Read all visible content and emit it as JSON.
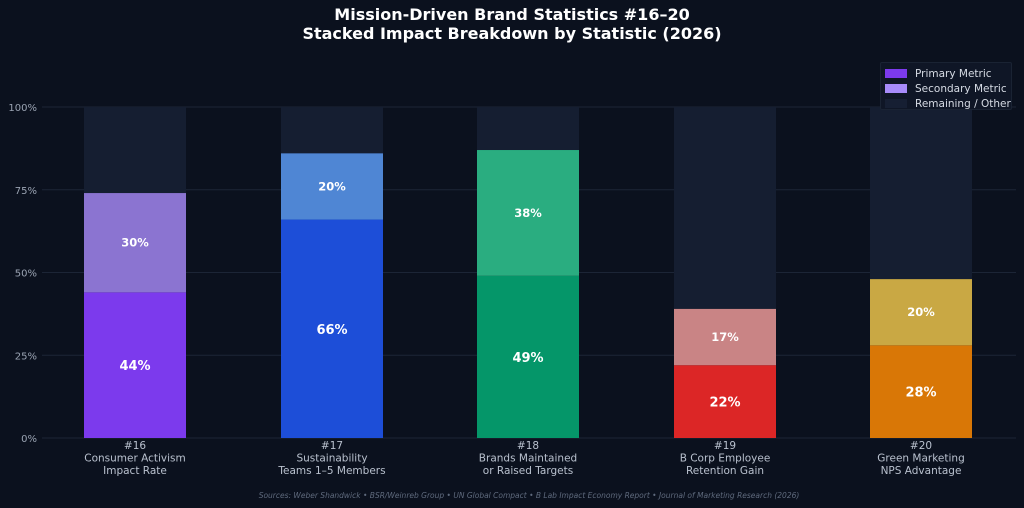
{
  "chart_data": {
    "type": "bar",
    "stacked": true,
    "title": "Mission-Driven Brand Statistics #16–20",
    "subtitle": "Stacked Impact Breakdown by Statistic (2026)",
    "ylim": [
      0,
      100
    ],
    "yticks": [
      "0%",
      "25%",
      "50%",
      "75%",
      "100%"
    ],
    "ytick_values": [
      0,
      25,
      50,
      75,
      100
    ],
    "grid": true,
    "legend_position": "top-right",
    "categories": [
      [
        "#16",
        "Consumer Activism",
        "Impact Rate"
      ],
      [
        "#17",
        "Sustainability",
        "Teams 1–5 Members"
      ],
      [
        "#18",
        "Brands Maintained",
        "or Raised Targets"
      ],
      [
        "#19",
        "B Corp Employee",
        "Retention Gain"
      ],
      [
        "#20",
        "Green Marketing",
        "NPS Advantage"
      ]
    ],
    "series": [
      {
        "name": "Primary Metric",
        "legend_color": "#7c3aed",
        "values": [
          44,
          66,
          49,
          22,
          28
        ],
        "labels": [
          "44%",
          "66%",
          "49%",
          "22%",
          "28%"
        ]
      },
      {
        "name": "Secondary Metric",
        "legend_color": "#a78bfa",
        "values": [
          30,
          20,
          38,
          17,
          20
        ],
        "labels": [
          "30%",
          "20%",
          "38%",
          "17%",
          "20%"
        ]
      },
      {
        "name": "Remaining / Other",
        "legend_color": "#161f33",
        "values": [
          26,
          14,
          13,
          61,
          52
        ]
      }
    ],
    "primary_colors": [
      "#7c3aed",
      "#1d4ed8",
      "#059669",
      "#dc2626",
      "#d97706"
    ],
    "secondary_colors": [
      "#8b74d1",
      "#4f86d4",
      "#2aad80",
      "#c98485",
      "#c9a844"
    ],
    "remaining_color": "#151e31",
    "source": "Sources: Weber Shandwick • BSR/Weinreb Group • UN Global Compact • B Lab Impact Economy Report • Journal of Marketing Research (2026)"
  }
}
